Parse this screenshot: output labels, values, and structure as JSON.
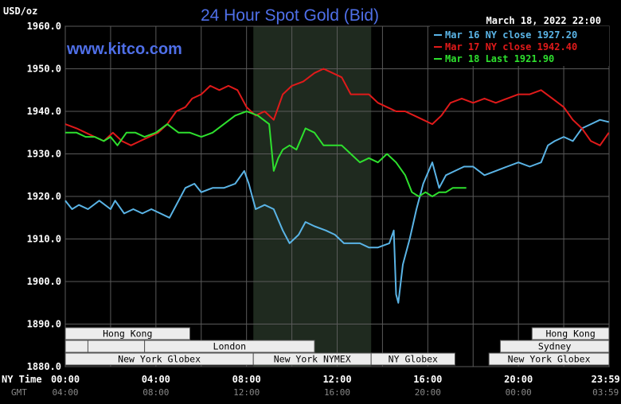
{
  "header": {
    "unit": "USD/oz",
    "title": "24 Hour Spot Gold (Bid)",
    "site": "www.kitco.com",
    "datetime": "March 18, 2022 22:00"
  },
  "legend": [
    {
      "label": "Mar 16 NY close 1927.20",
      "color": "#5ab4e6"
    },
    {
      "label": "Mar 17 NY close 1942.40",
      "color": "#e01a1a"
    },
    {
      "label": "Mar 18 Last 1921.90",
      "color": "#2ee02e"
    }
  ],
  "axis": {
    "ny_time_label": "NY Time",
    "gmt_label": "GMT",
    "ny_ticks": [
      "00:00",
      "04:00",
      "08:00",
      "12:00",
      "16:00",
      "20:00",
      "23:59"
    ],
    "gmt_ticks": [
      "04:00",
      "08:00",
      "12:00",
      "16:00",
      "20:00",
      "00:00",
      "03:59"
    ]
  },
  "sessions": {
    "row1": [
      {
        "label": "Hong Kong",
        "start": 0,
        "end": 5.5
      },
      {
        "label": "Hong Kong",
        "start": 20.6,
        "end": 24
      }
    ],
    "row2": [
      {
        "label": "",
        "start": 0,
        "end": 1
      },
      {
        "label": "",
        "start": 1,
        "end": 3.5
      },
      {
        "label": "London",
        "start": 3.5,
        "end": 11
      },
      {
        "label": "Sydney",
        "start": 19.2,
        "end": 24
      }
    ],
    "row3": [
      {
        "label": "New York Globex",
        "start": 0,
        "end": 8.3
      },
      {
        "label": "New York NYMEX",
        "start": 8.3,
        "end": 13.5
      },
      {
        "label": "NY Globex",
        "start": 13.5,
        "end": 17.2
      },
      {
        "label": "New York Globex",
        "start": 18.7,
        "end": 24
      }
    ]
  },
  "chart_data": {
    "type": "line",
    "title": "24 Hour Spot Gold (Bid)",
    "ylabel": "USD/oz",
    "xlabel": "NY Time",
    "xlim": [
      0,
      24
    ],
    "ylim": [
      1880,
      1960
    ],
    "yticks": [
      "1960.0",
      "1950.0",
      "1940.0",
      "1930.0",
      "1920.0",
      "1910.0",
      "1900.0",
      "1890.0",
      "1880.0"
    ],
    "grid": true,
    "shaded_region": [
      8.3,
      13.5
    ],
    "series": [
      {
        "name": "Mar 16 NY close 1927.20",
        "color": "#5ab4e6",
        "x": [
          0,
          0.3,
          0.6,
          1.0,
          1.5,
          2.0,
          2.2,
          2.6,
          3.0,
          3.4,
          3.8,
          4.2,
          4.6,
          5.0,
          5.3,
          5.7,
          6.0,
          6.5,
          7.0,
          7.5,
          7.9,
          8.1,
          8.4,
          8.8,
          9.2,
          9.6,
          9.9,
          10.3,
          10.6,
          11.0,
          11.5,
          11.9,
          12.3,
          12.7,
          13.0,
          13.4,
          13.8,
          14.3,
          14.5,
          14.6,
          14.7,
          14.9,
          15.2,
          15.5,
          15.8,
          16.2,
          16.5,
          16.8,
          17.2,
          17.6,
          18.0,
          18.5,
          19.0,
          19.5,
          20.0,
          20.5,
          21.0,
          21.3,
          21.6,
          22.0,
          22.4,
          22.8,
          23.2,
          23.6,
          23.99
        ],
        "y": [
          1919,
          1917,
          1918,
          1917,
          1919,
          1917,
          1919,
          1916,
          1917,
          1916,
          1917,
          1916,
          1915,
          1919,
          1922,
          1923,
          1921,
          1922,
          1922,
          1923,
          1926,
          1923,
          1917,
          1918,
          1917,
          1912,
          1909,
          1911,
          1914,
          1913,
          1912,
          1911,
          1909,
          1909,
          1909,
          1908,
          1908,
          1909,
          1912,
          1897,
          1895,
          1904,
          1910,
          1917,
          1923,
          1928,
          1922,
          1925,
          1926,
          1927,
          1927,
          1925,
          1926,
          1927,
          1928,
          1927,
          1928,
          1932,
          1933,
          1934,
          1933,
          1936,
          1937,
          1938,
          1937.5
        ]
      },
      {
        "name": "Mar 17 NY close 1942.40",
        "color": "#e01a1a",
        "x": [
          0,
          0.5,
          0.9,
          1.3,
          1.7,
          2.1,
          2.5,
          2.9,
          3.3,
          3.7,
          4.1,
          4.5,
          4.9,
          5.3,
          5.6,
          6.0,
          6.4,
          6.8,
          7.2,
          7.6,
          8.0,
          8.4,
          8.8,
          9.2,
          9.6,
          10.0,
          10.5,
          11.0,
          11.4,
          11.8,
          12.2,
          12.6,
          13.0,
          13.4,
          13.8,
          14.2,
          14.6,
          15.0,
          15.4,
          15.8,
          16.2,
          16.6,
          17.0,
          17.5,
          18.0,
          18.5,
          19.0,
          19.5,
          20.0,
          20.5,
          21.0,
          21.5,
          22.0,
          22.4,
          22.8,
          23.2,
          23.6,
          23.99
        ],
        "y": [
          1937,
          1936,
          1935,
          1934,
          1933,
          1935,
          1933,
          1932,
          1933,
          1934,
          1935,
          1937,
          1940,
          1941,
          1943,
          1944,
          1946,
          1945,
          1946,
          1945,
          1941,
          1939,
          1940,
          1938,
          1944,
          1946,
          1947,
          1949,
          1950,
          1949,
          1948,
          1944,
          1944,
          1944,
          1942,
          1941,
          1940,
          1940,
          1939,
          1938,
          1937,
          1939,
          1942,
          1943,
          1942,
          1943,
          1942,
          1943,
          1944,
          1944,
          1945,
          1943,
          1941,
          1938,
          1936,
          1933,
          1932,
          1935
        ]
      },
      {
        "name": "Mar 18 Last 1921.90",
        "color": "#2ee02e",
        "x": [
          0,
          0.5,
          0.9,
          1.3,
          1.7,
          2.0,
          2.3,
          2.7,
          3.1,
          3.5,
          4.0,
          4.5,
          5.0,
          5.5,
          6.0,
          6.5,
          7.0,
          7.5,
          8.0,
          8.5,
          9.0,
          9.2,
          9.4,
          9.6,
          9.9,
          10.2,
          10.6,
          11.0,
          11.4,
          11.8,
          12.2,
          12.6,
          13.0,
          13.4,
          13.8,
          14.2,
          14.6,
          15.0,
          15.3,
          15.6,
          15.9,
          16.2,
          16.5,
          16.8,
          17.1,
          17.4,
          17.7
        ],
        "y": [
          1935,
          1935,
          1934,
          1934,
          1933,
          1934,
          1932,
          1935,
          1935,
          1934,
          1935,
          1937,
          1935,
          1935,
          1934,
          1935,
          1937,
          1939,
          1940,
          1939,
          1937,
          1926,
          1929,
          1931,
          1932,
          1931,
          1936,
          1935,
          1932,
          1932,
          1932,
          1930,
          1928,
          1929,
          1928,
          1930,
          1928,
          1925,
          1921,
          1920,
          1921,
          1920,
          1921,
          1921,
          1922,
          1922,
          1922
        ]
      }
    ]
  }
}
